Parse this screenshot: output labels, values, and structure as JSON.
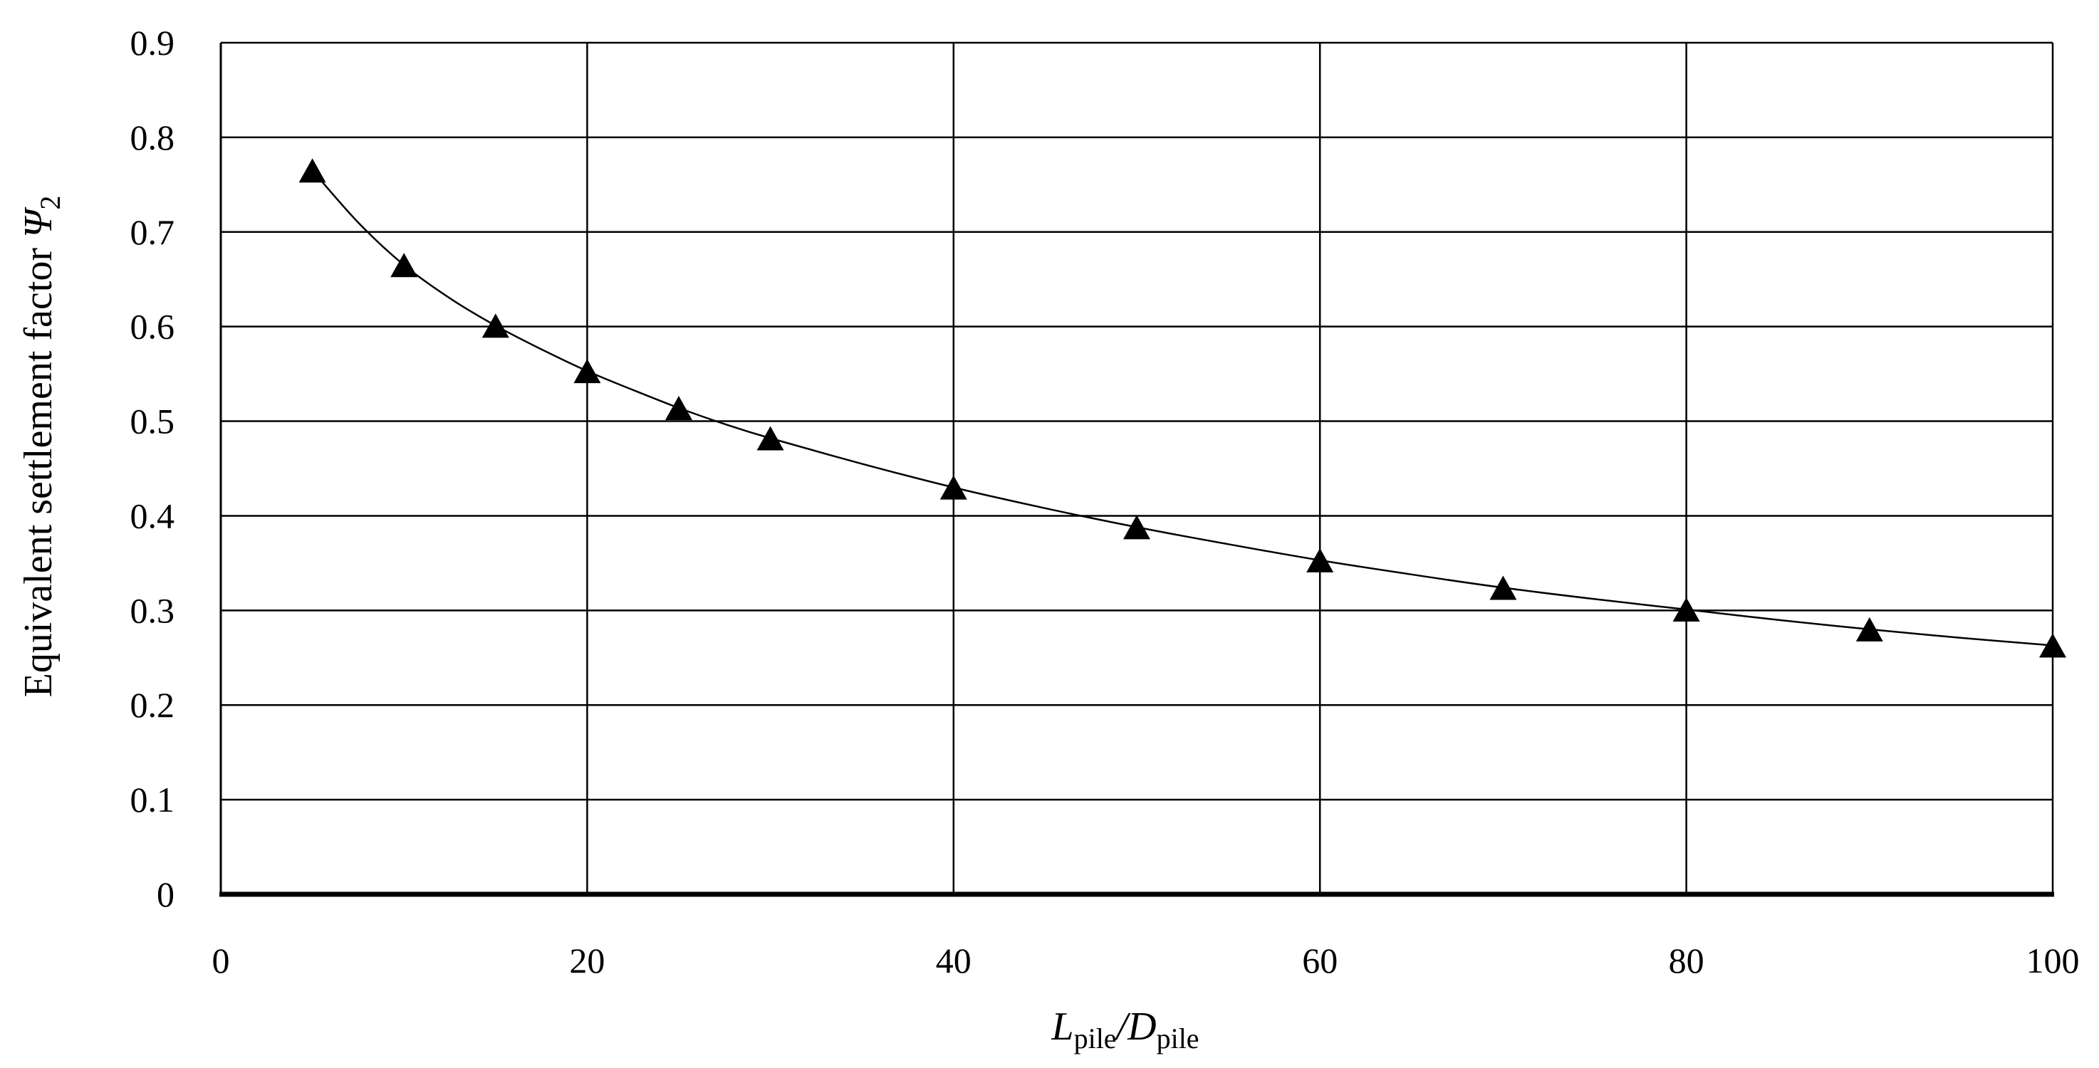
{
  "chart_data": {
    "type": "scatter",
    "title": "",
    "xlabel": {
      "main1": "L",
      "sub1": "pile",
      "sep": "/",
      "main2": "D",
      "sub2": "pile"
    },
    "ylabel": {
      "text": "Equivalent settlement factor ",
      "symbol": "Ψ",
      "sub": "2"
    },
    "xlim": [
      0,
      100
    ],
    "ylim": [
      0,
      0.9
    ],
    "x_ticks": [
      0,
      20,
      40,
      60,
      80,
      100
    ],
    "x_tick_labels": [
      "0",
      "20",
      "40",
      "60",
      "80",
      "100"
    ],
    "y_ticks": [
      0,
      0.1,
      0.2,
      0.3,
      0.4,
      0.5,
      0.6,
      0.7,
      0.8,
      0.9
    ],
    "y_tick_labels": [
      "0",
      "0.1",
      "0.2",
      "0.3",
      "0.4",
      "0.5",
      "0.6",
      "0.7",
      "0.8",
      "0.9"
    ],
    "grid": true,
    "series": [
      {
        "marker": "triangle",
        "color": "#000000",
        "points": [
          {
            "x": 5,
            "y": 0.765
          },
          {
            "x": 10,
            "y": 0.665
          },
          {
            "x": 15,
            "y": 0.601
          },
          {
            "x": 20,
            "y": 0.553
          },
          {
            "x": 25,
            "y": 0.514
          },
          {
            "x": 30,
            "y": 0.482
          },
          {
            "x": 40,
            "y": 0.43
          },
          {
            "x": 50,
            "y": 0.388
          },
          {
            "x": 60,
            "y": 0.353
          },
          {
            "x": 70,
            "y": 0.324
          },
          {
            "x": 80,
            "y": 0.301
          },
          {
            "x": 90,
            "y": 0.28
          },
          {
            "x": 100,
            "y": 0.263
          }
        ]
      }
    ],
    "fit_curve": {
      "color": "#000000",
      "x": [
        5,
        7.5,
        10,
        12.5,
        15,
        17.5,
        20,
        22.5,
        25,
        27.5,
        30,
        35,
        40,
        45,
        50,
        55,
        60,
        65,
        70,
        75,
        80,
        85,
        90,
        95,
        100
      ],
      "y": [
        0.765,
        0.71,
        0.665,
        0.63,
        0.601,
        0.576,
        0.553,
        0.533,
        0.514,
        0.497,
        0.482,
        0.455,
        0.43,
        0.408,
        0.388,
        0.37,
        0.353,
        0.338,
        0.324,
        0.312,
        0.301,
        0.29,
        0.28,
        0.271,
        0.263
      ]
    }
  }
}
